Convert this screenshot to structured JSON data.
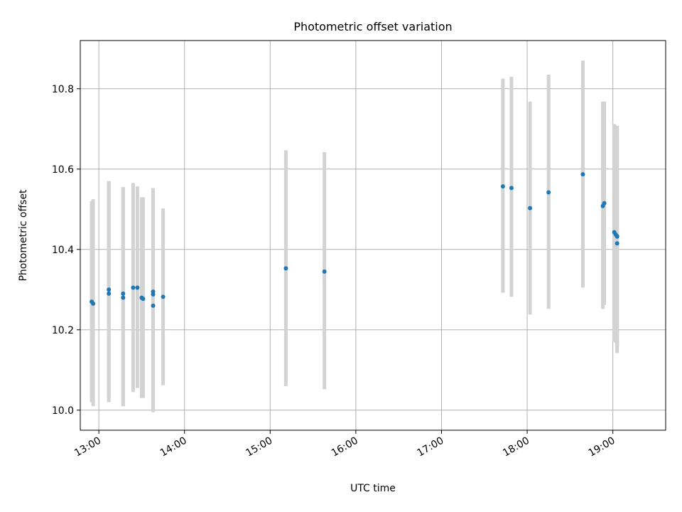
{
  "chart_data": {
    "type": "scatter",
    "title": "Photometric offset variation",
    "xlabel": "UTC time",
    "ylabel": "Photometric offset",
    "x_ticks": [
      "13:00",
      "14:00",
      "15:00",
      "16:00",
      "17:00",
      "18:00",
      "19:00"
    ],
    "y_ticks": [
      "10.0",
      "10.2",
      "10.4",
      "10.6",
      "10.8"
    ],
    "xlim": [
      "12:47",
      "19:37"
    ],
    "ylim": [
      9.95,
      10.92
    ],
    "grid": true,
    "legend": "none",
    "colors": {
      "point": "#1f77b4",
      "errorbar": "#d3d3d3",
      "grid": "#b0b0b0"
    },
    "points": [
      {
        "x": "12:55",
        "y": 10.27,
        "low": 10.02,
        "high": 10.52
      },
      {
        "x": "12:56",
        "y": 10.265,
        "low": 10.01,
        "high": 10.525
      },
      {
        "x": "13:07",
        "y": 10.29,
        "low": 10.02,
        "high": 10.57
      },
      {
        "x": "13:07",
        "y": 10.3,
        "low": 10.03,
        "high": 10.57
      },
      {
        "x": "13:17",
        "y": 10.29,
        "low": 10.01,
        "high": 10.555
      },
      {
        "x": "13:17",
        "y": 10.28,
        "low": 10.01,
        "high": 10.555
      },
      {
        "x": "13:24",
        "y": 10.305,
        "low": 10.045,
        "high": 10.565
      },
      {
        "x": "13:27",
        "y": 10.305,
        "low": 10.055,
        "high": 10.557
      },
      {
        "x": "13:30",
        "y": 10.28,
        "low": 10.03,
        "high": 10.53
      },
      {
        "x": "13:31",
        "y": 10.277,
        "low": 10.03,
        "high": 10.53
      },
      {
        "x": "13:38",
        "y": 10.295,
        "low": 10.04,
        "high": 10.553
      },
      {
        "x": "13:38",
        "y": 10.288,
        "low": 10.04,
        "high": 10.55
      },
      {
        "x": "13:38",
        "y": 10.26,
        "low": 9.995,
        "high": 10.53
      },
      {
        "x": "13:45",
        "y": 10.282,
        "low": 10.062,
        "high": 10.502
      },
      {
        "x": "15:11",
        "y": 10.353,
        "low": 10.06,
        "high": 10.647
      },
      {
        "x": "15:38",
        "y": 10.345,
        "low": 10.052,
        "high": 10.642
      },
      {
        "x": "17:43",
        "y": 10.557,
        "low": 10.292,
        "high": 10.825
      },
      {
        "x": "17:49",
        "y": 10.553,
        "low": 10.282,
        "high": 10.83
      },
      {
        "x": "18:02",
        "y": 10.503,
        "low": 10.238,
        "high": 10.768
      },
      {
        "x": "18:15",
        "y": 10.542,
        "low": 10.252,
        "high": 10.835
      },
      {
        "x": "18:39",
        "y": 10.587,
        "low": 10.305,
        "high": 10.87
      },
      {
        "x": "18:53",
        "y": 10.508,
        "low": 10.252,
        "high": 10.768
      },
      {
        "x": "18:54",
        "y": 10.515,
        "low": 10.262,
        "high": 10.768
      },
      {
        "x": "19:01",
        "y": 10.443,
        "low": 10.172,
        "high": 10.712
      },
      {
        "x": "19:02",
        "y": 10.437,
        "low": 10.168,
        "high": 10.708
      },
      {
        "x": "19:03",
        "y": 10.433,
        "low": 10.158,
        "high": 10.708
      },
      {
        "x": "19:03",
        "y": 10.432,
        "low": 10.157,
        "high": 10.707
      },
      {
        "x": "19:03",
        "y": 10.415,
        "low": 10.142,
        "high": 10.69
      }
    ]
  }
}
